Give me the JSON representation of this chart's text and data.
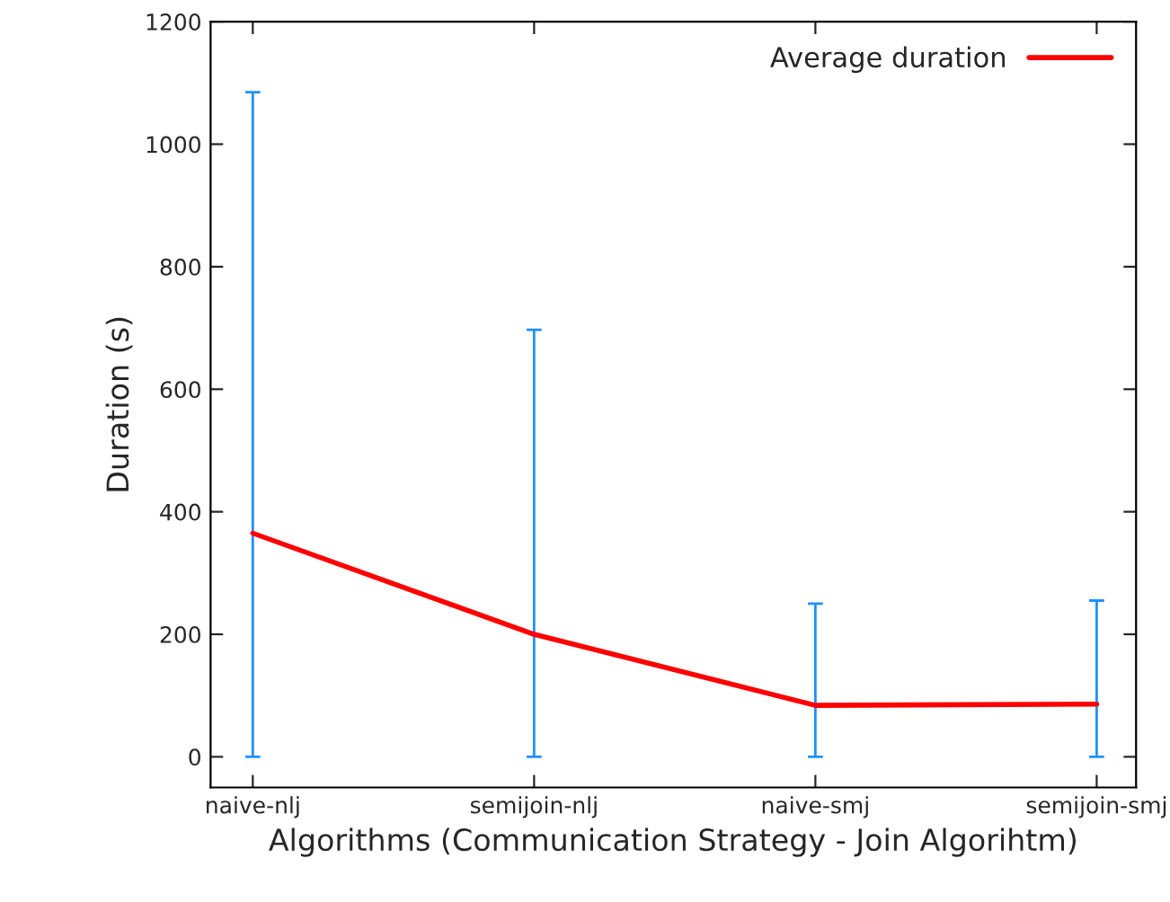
{
  "chart_data": {
    "type": "line",
    "xlabel": "Algorithms (Communication Strategy - Join Algorihtm)",
    "ylabel": "Duration (s)",
    "categories": [
      "naive-nlj",
      "semijoin-nlj",
      "naive-smj",
      "semijoin-smj"
    ],
    "series": [
      {
        "name": "Average duration",
        "color": "#ff0000",
        "values": [
          365,
          200,
          84,
          86
        ],
        "errors": [
          [
            0,
            1085
          ],
          [
            0,
            697
          ],
          [
            0,
            250
          ],
          [
            0,
            255
          ]
        ]
      }
    ],
    "ylim": [
      -50,
      1200
    ],
    "yticks": [
      0,
      200,
      400,
      600,
      800,
      1000,
      1200
    ],
    "grid": false,
    "legend": "top right",
    "marker": "none",
    "line_style": "solid"
  }
}
